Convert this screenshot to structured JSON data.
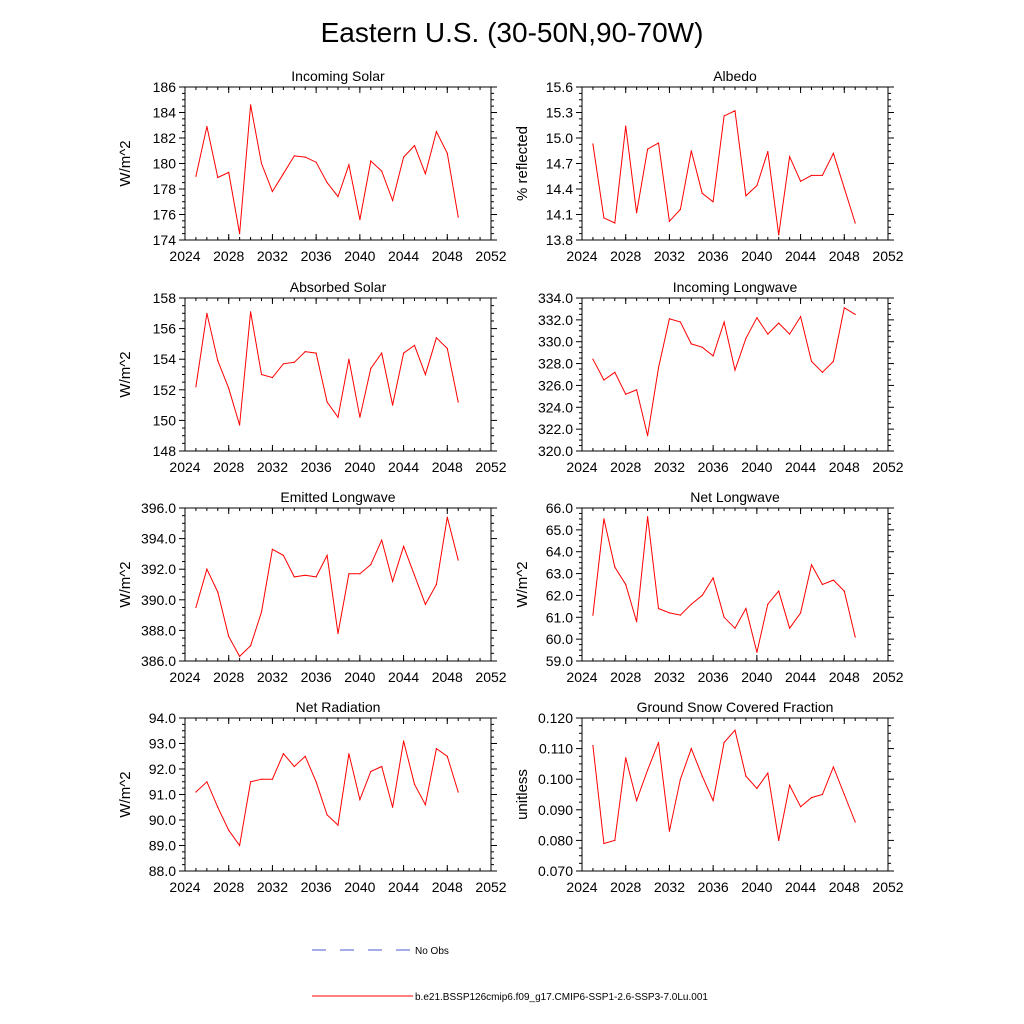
{
  "figure": {
    "title": "Eastern U.S. (30-50N,90-70W)",
    "legend": [
      {
        "label": "No Obs",
        "color": "#4a5bd0",
        "style": "dashed"
      },
      {
        "label": "b.e21.BSSP126cmip6.f09_g17.CMIP6-SSP1-2.6-SSP3-7.0Lu.001",
        "color": "#ff0000",
        "style": "solid"
      }
    ]
  },
  "chart_data": [
    {
      "type": "line",
      "title": "Incoming Solar",
      "xlabel": "",
      "ylabel": "W/m^2",
      "xlim": [
        2024,
        2052
      ],
      "ylim": [
        174,
        186
      ],
      "xticks": [
        "2024",
        "2028",
        "2032",
        "2036",
        "2040",
        "2044",
        "2048",
        "2052"
      ],
      "yticks": [
        "174",
        "176",
        "178",
        "180",
        "182",
        "184",
        "186"
      ],
      "grid": false,
      "x": [
        2025,
        2026,
        2027,
        2028,
        2029,
        2030,
        2031,
        2032,
        2033,
        2034,
        2035,
        2036,
        2037,
        2038,
        2039,
        2040,
        2041,
        2042,
        2043,
        2044,
        2045,
        2046,
        2047,
        2048,
        2049
      ],
      "series": [
        {
          "color": "#ff0000",
          "values": [
            179.0,
            182.9,
            178.9,
            179.3,
            174.5,
            184.6,
            180.0,
            177.8,
            179.2,
            180.6,
            180.5,
            180.1,
            178.5,
            177.4,
            179.9,
            175.6,
            180.2,
            179.4,
            177.1,
            180.5,
            181.4,
            179.2,
            182.5,
            180.8,
            175.8
          ]
        }
      ]
    },
    {
      "type": "line",
      "title": "Albedo",
      "xlabel": "",
      "ylabel": "% reflected",
      "xlim": [
        2024,
        2052
      ],
      "ylim": [
        13.8,
        15.6
      ],
      "xticks": [
        "2024",
        "2028",
        "2032",
        "2036",
        "2040",
        "2044",
        "2048",
        "2052"
      ],
      "yticks": [
        "13.8",
        "14.1",
        "14.4",
        "14.7",
        "15.0",
        "15.3",
        "15.6"
      ],
      "grid": false,
      "x": [
        2025,
        2026,
        2027,
        2028,
        2029,
        2030,
        2031,
        2032,
        2033,
        2034,
        2035,
        2036,
        2037,
        2038,
        2039,
        2040,
        2041,
        2042,
        2043,
        2044,
        2045,
        2046,
        2047,
        2048,
        2049
      ],
      "series": [
        {
          "color": "#ff0000",
          "values": [
            14.93,
            14.06,
            14.0,
            15.14,
            14.12,
            14.87,
            14.94,
            14.02,
            14.16,
            14.85,
            14.35,
            14.25,
            15.26,
            15.32,
            14.32,
            14.44,
            14.84,
            13.86,
            14.78,
            14.49,
            14.56,
            14.56,
            14.82,
            14.41,
            14.0
          ]
        }
      ]
    },
    {
      "type": "line",
      "title": "Absorbed Solar",
      "xlabel": "",
      "ylabel": "W/m^2",
      "xlim": [
        2024,
        2052
      ],
      "ylim": [
        148,
        158
      ],
      "xticks": [
        "2024",
        "2028",
        "2032",
        "2036",
        "2040",
        "2044",
        "2048",
        "2052"
      ],
      "yticks": [
        "148",
        "150",
        "152",
        "154",
        "156",
        "158"
      ],
      "grid": false,
      "x": [
        2025,
        2026,
        2027,
        2028,
        2029,
        2030,
        2031,
        2032,
        2033,
        2034,
        2035,
        2036,
        2037,
        2038,
        2039,
        2040,
        2041,
        2042,
        2043,
        2044,
        2045,
        2046,
        2047,
        2048,
        2049
      ],
      "series": [
        {
          "color": "#ff0000",
          "values": [
            152.2,
            157.0,
            153.9,
            152.1,
            149.7,
            157.1,
            153.0,
            152.8,
            153.7,
            153.8,
            154.5,
            154.4,
            151.2,
            150.2,
            154.0,
            150.2,
            153.4,
            154.4,
            151.0,
            154.4,
            154.9,
            153.0,
            155.4,
            154.7,
            151.2
          ]
        }
      ]
    },
    {
      "type": "line",
      "title": "Incoming Longwave",
      "xlabel": "",
      "ylabel": "",
      "xlim": [
        2024,
        2052
      ],
      "ylim": [
        320,
        334
      ],
      "xticks": [
        "2024",
        "2028",
        "2032",
        "2036",
        "2040",
        "2044",
        "2048",
        "2052"
      ],
      "yticks": [
        "320.0",
        "322.0",
        "324.0",
        "326.0",
        "328.0",
        "330.0",
        "332.0",
        "334.0"
      ],
      "grid": false,
      "x": [
        2025,
        2026,
        2027,
        2028,
        2029,
        2030,
        2031,
        2032,
        2033,
        2034,
        2035,
        2036,
        2037,
        2038,
        2039,
        2040,
        2041,
        2042,
        2043,
        2044,
        2045,
        2046,
        2047,
        2048,
        2049
      ],
      "series": [
        {
          "color": "#ff0000",
          "values": [
            328.4,
            326.5,
            327.2,
            325.2,
            325.6,
            321.4,
            327.6,
            332.1,
            331.8,
            329.8,
            329.5,
            328.7,
            331.8,
            327.4,
            330.3,
            332.2,
            330.7,
            331.7,
            330.7,
            332.3,
            328.2,
            327.2,
            328.2,
            333.1,
            332.5
          ]
        }
      ]
    },
    {
      "type": "line",
      "title": "Emitted Longwave",
      "xlabel": "",
      "ylabel": "W/m^2",
      "xlim": [
        2024,
        2052
      ],
      "ylim": [
        386,
        396
      ],
      "xticks": [
        "2024",
        "2028",
        "2032",
        "2036",
        "2040",
        "2044",
        "2048",
        "2052"
      ],
      "yticks": [
        "386.0",
        "388.0",
        "390.0",
        "392.0",
        "394.0",
        "396.0"
      ],
      "grid": false,
      "x": [
        2025,
        2026,
        2027,
        2028,
        2029,
        2030,
        2031,
        2032,
        2033,
        2034,
        2035,
        2036,
        2037,
        2038,
        2039,
        2040,
        2041,
        2042,
        2043,
        2044,
        2045,
        2046,
        2047,
        2048,
        2049
      ],
      "series": [
        {
          "color": "#ff0000",
          "values": [
            389.5,
            392.0,
            390.5,
            387.6,
            386.3,
            387.0,
            389.2,
            393.3,
            392.9,
            391.5,
            391.6,
            391.5,
            392.9,
            387.8,
            391.7,
            391.7,
            392.3,
            393.9,
            391.2,
            393.5,
            391.6,
            389.7,
            391.0,
            395.4,
            392.6
          ]
        }
      ]
    },
    {
      "type": "line",
      "title": "Net Longwave",
      "xlabel": "",
      "ylabel": "W/m^2",
      "xlim": [
        2024,
        2052
      ],
      "ylim": [
        59,
        66
      ],
      "xticks": [
        "2024",
        "2028",
        "2032",
        "2036",
        "2040",
        "2044",
        "2048",
        "2052"
      ],
      "yticks": [
        "59.0",
        "60.0",
        "61.0",
        "62.0",
        "63.0",
        "64.0",
        "65.0",
        "66.0"
      ],
      "grid": false,
      "x": [
        2025,
        2026,
        2027,
        2028,
        2029,
        2030,
        2031,
        2032,
        2033,
        2034,
        2035,
        2036,
        2037,
        2038,
        2039,
        2040,
        2041,
        2042,
        2043,
        2044,
        2045,
        2046,
        2047,
        2048,
        2049
      ],
      "series": [
        {
          "color": "#ff0000",
          "values": [
            61.1,
            65.5,
            63.3,
            62.5,
            60.8,
            65.6,
            61.4,
            61.2,
            61.1,
            61.6,
            62.0,
            62.8,
            61.0,
            60.5,
            61.4,
            59.4,
            61.6,
            62.2,
            60.5,
            61.2,
            63.4,
            62.5,
            62.7,
            62.2,
            60.1
          ]
        }
      ]
    },
    {
      "type": "line",
      "title": "Net Radiation",
      "xlabel": "",
      "ylabel": "W/m^2",
      "xlim": [
        2024,
        2052
      ],
      "ylim": [
        88,
        94
      ],
      "xticks": [
        "2024",
        "2028",
        "2032",
        "2036",
        "2040",
        "2044",
        "2048",
        "2052"
      ],
      "yticks": [
        "88.0",
        "89.0",
        "90.0",
        "91.0",
        "92.0",
        "93.0",
        "94.0"
      ],
      "grid": false,
      "x": [
        2025,
        2026,
        2027,
        2028,
        2029,
        2030,
        2031,
        2032,
        2033,
        2034,
        2035,
        2036,
        2037,
        2038,
        2039,
        2040,
        2041,
        2042,
        2043,
        2044,
        2045,
        2046,
        2047,
        2048,
        2049
      ],
      "series": [
        {
          "color": "#ff0000",
          "values": [
            91.1,
            91.5,
            90.5,
            89.6,
            89.0,
            91.5,
            91.6,
            91.6,
            92.6,
            92.1,
            92.5,
            91.5,
            90.2,
            89.8,
            92.6,
            90.8,
            91.9,
            92.1,
            90.5,
            93.1,
            91.4,
            90.6,
            92.8,
            92.5,
            91.1
          ]
        }
      ]
    },
    {
      "type": "line",
      "title": "Ground Snow Covered Fraction",
      "xlabel": "",
      "ylabel": "unitless",
      "xlim": [
        2024,
        2052
      ],
      "ylim": [
        0.07,
        0.12
      ],
      "xticks": [
        "2024",
        "2028",
        "2032",
        "2036",
        "2040",
        "2044",
        "2048",
        "2052"
      ],
      "yticks": [
        "0.070",
        "0.080",
        "0.090",
        "0.100",
        "0.110",
        "0.120"
      ],
      "grid": false,
      "x": [
        2025,
        2026,
        2027,
        2028,
        2029,
        2030,
        2031,
        2032,
        2033,
        2034,
        2035,
        2036,
        2037,
        2038,
        2039,
        2040,
        2041,
        2042,
        2043,
        2044,
        2045,
        2046,
        2047,
        2048,
        2049
      ],
      "series": [
        {
          "color": "#ff0000",
          "values": [
            0.111,
            0.079,
            0.08,
            0.107,
            0.093,
            0.103,
            0.112,
            0.083,
            0.1,
            0.11,
            0.101,
            0.093,
            0.112,
            0.116,
            0.101,
            0.097,
            0.102,
            0.08,
            0.098,
            0.091,
            0.094,
            0.095,
            0.104,
            0.095,
            0.086
          ]
        }
      ]
    }
  ]
}
